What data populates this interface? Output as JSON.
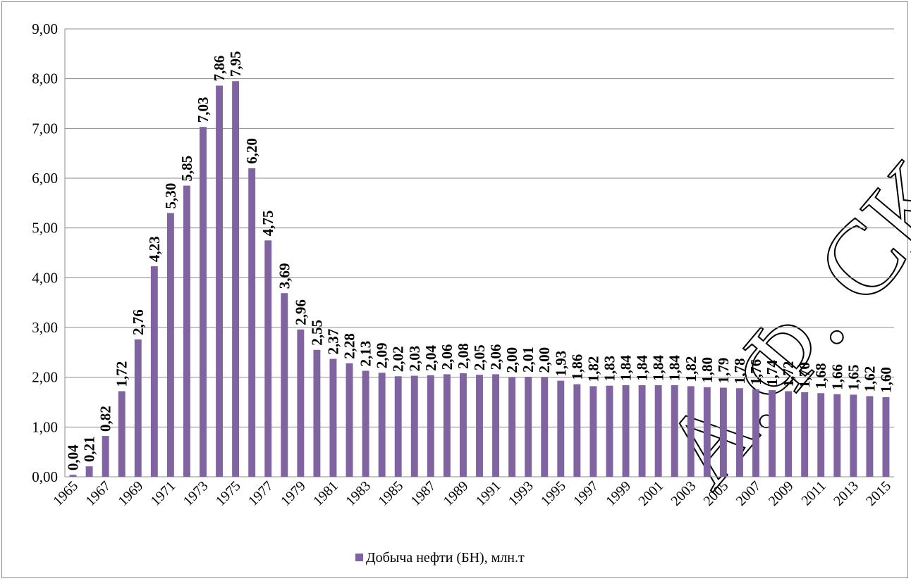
{
  "chart_data": {
    "type": "bar",
    "title": "",
    "xlabel": "",
    "ylabel": "",
    "ylim": [
      0,
      9
    ],
    "y_ticks": [
      "0,00",
      "1,00",
      "2,00",
      "3,00",
      "4,00",
      "5,00",
      "6,00",
      "7,00",
      "8,00",
      "9,00"
    ],
    "grid": "horizontal",
    "legend_position": "bottom",
    "bar_color": "#8064a2",
    "categories": [
      "1965",
      "1966",
      "1967",
      "1968",
      "1969",
      "1970",
      "1971",
      "1972",
      "1973",
      "1974",
      "1975",
      "1976",
      "1977",
      "1978",
      "1979",
      "1980",
      "1981",
      "1982",
      "1983",
      "1984",
      "1985",
      "1986",
      "1987",
      "1988",
      "1989",
      "1990",
      "1991",
      "1992",
      "1993",
      "1994",
      "1995",
      "1996",
      "1997",
      "1998",
      "1999",
      "2000",
      "2001",
      "2002",
      "2003",
      "2004",
      "2005",
      "2006",
      "2007",
      "2008",
      "2009",
      "2010",
      "2011",
      "2012",
      "2013",
      "2014",
      "2015"
    ],
    "x_tick_labels": [
      "1965",
      "1967",
      "1969",
      "1971",
      "1973",
      "1975",
      "1977",
      "1979",
      "1981",
      "1983",
      "1985",
      "1987",
      "1989",
      "1991",
      "1993",
      "1995",
      "1997",
      "1999",
      "2001",
      "2003",
      "2005",
      "2007",
      "2009",
      "2011",
      "2013",
      "2015"
    ],
    "series": [
      {
        "name": "Добыча нефти (БН), млн.т",
        "values": [
          0.04,
          0.21,
          0.82,
          1.72,
          2.76,
          4.23,
          5.3,
          5.85,
          7.03,
          7.86,
          7.95,
          6.2,
          4.75,
          3.69,
          2.96,
          2.55,
          2.37,
          2.28,
          2.13,
          2.09,
          2.02,
          2.03,
          2.04,
          2.06,
          2.08,
          2.05,
          2.06,
          2.0,
          2.01,
          2.0,
          1.93,
          1.86,
          1.82,
          1.83,
          1.84,
          1.84,
          1.84,
          1.84,
          1.82,
          1.8,
          1.79,
          1.78,
          1.76,
          1.74,
          1.72,
          1.7,
          1.68,
          1.66,
          1.65,
          1.62,
          1.6
        ],
        "labels": [
          "0,04",
          "0,21",
          "0,82",
          "1,72",
          "2,76",
          "4,23",
          "5,30",
          "5,85",
          "7,03",
          "7,86",
          "7,95",
          "6,20",
          "4,75",
          "3,69",
          "2,96",
          "2,55",
          "2,37",
          "2,28",
          "2,13",
          "2,09",
          "2,02",
          "2,03",
          "2,04",
          "2,06",
          "2,08",
          "2,05",
          "2,06",
          "2,00",
          "2,01",
          "2,00",
          "1,93",
          "1,86",
          "1,82",
          "1,83",
          "1,84",
          "1,84",
          "1,84",
          "1,84",
          "1,82",
          "1,80",
          "1,79",
          "1,78",
          "1,76",
          "1,74",
          "1,72",
          "1,70",
          "1,68",
          "1,66",
          "1,65",
          "1,62",
          "1,60"
        ]
      }
    ]
  },
  "watermark": "А.Ф. СКОРИНЫ"
}
